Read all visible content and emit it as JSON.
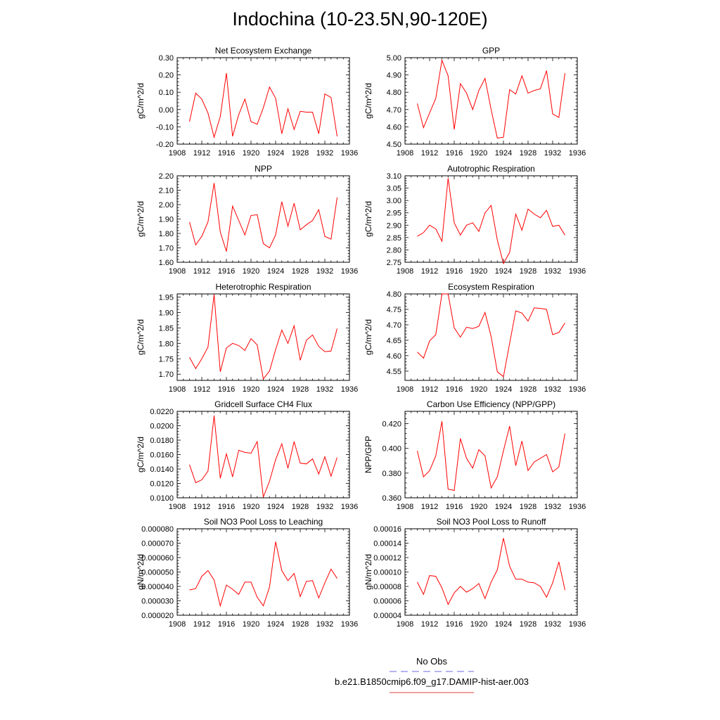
{
  "page": {
    "title": "Indochina (10-23.5N,90-120E)"
  },
  "legend": {
    "items": [
      {
        "label": "No Obs",
        "color": "#6a6ae6",
        "style": "dashed"
      },
      {
        "label": "b.e21.B1850cmip6.f09_g17.DAMIP-hist-aer.003",
        "color": "#e04040",
        "style": "solid"
      }
    ]
  },
  "chart_data": [
    {
      "type": "line",
      "title": "Net Ecosystem Exchange",
      "ylabel": "gC/m^2/d",
      "xlim": [
        1908,
        1936
      ],
      "xticks": [
        1908,
        1912,
        1916,
        1920,
        1924,
        1928,
        1932,
        1936
      ],
      "ylim": [
        -0.2,
        0.3
      ],
      "yticks": [
        -0.2,
        -0.1,
        0.0,
        0.1,
        0.2,
        0.3
      ],
      "ydecimals": 2,
      "series": [
        {
          "color": "#ff0000",
          "x": [
            1910,
            1911,
            1912,
            1913,
            1914,
            1915,
            1916,
            1917,
            1918,
            1919,
            1920,
            1921,
            1922,
            1923,
            1924,
            1925,
            1926,
            1927,
            1928,
            1929,
            1930,
            1931,
            1932,
            1933,
            1934
          ],
          "y": [
            -0.07,
            0.095,
            0.06,
            -0.02,
            -0.16,
            -0.04,
            0.21,
            -0.155,
            -0.03,
            0.06,
            -0.07,
            -0.085,
            0.01,
            0.13,
            0.065,
            -0.14,
            0.005,
            -0.115,
            -0.01,
            -0.015,
            -0.015,
            -0.14,
            0.09,
            0.07,
            -0.155
          ]
        }
      ]
    },
    {
      "type": "line",
      "title": "GPP",
      "ylabel": "gC/m^2/d",
      "xlim": [
        1908,
        1936
      ],
      "xticks": [
        1908,
        1912,
        1916,
        1920,
        1924,
        1928,
        1932,
        1936
      ],
      "ylim": [
        4.5,
        5.0
      ],
      "yticks": [
        4.5,
        4.6,
        4.7,
        4.8,
        4.9,
        5.0
      ],
      "ydecimals": 2,
      "series": [
        {
          "color": "#ff0000",
          "x": [
            1910,
            1911,
            1912,
            1913,
            1914,
            1915,
            1916,
            1917,
            1918,
            1919,
            1920,
            1921,
            1922,
            1923,
            1924,
            1925,
            1926,
            1927,
            1928,
            1929,
            1930,
            1931,
            1932,
            1933,
            1934
          ],
          "y": [
            4.735,
            4.595,
            4.68,
            4.765,
            4.985,
            4.895,
            4.585,
            4.85,
            4.795,
            4.7,
            4.81,
            4.88,
            4.7,
            4.535,
            4.54,
            4.815,
            4.79,
            4.895,
            4.795,
            4.81,
            4.82,
            4.925,
            4.675,
            4.655,
            4.91
          ]
        }
      ]
    },
    {
      "type": "line",
      "title": "NPP",
      "ylabel": "gC/m^2/d",
      "xlim": [
        1908,
        1936
      ],
      "xticks": [
        1908,
        1912,
        1916,
        1920,
        1924,
        1928,
        1932,
        1936
      ],
      "ylim": [
        1.6,
        2.2
      ],
      "yticks": [
        1.6,
        1.7,
        1.8,
        1.9,
        2.0,
        2.1,
        2.2
      ],
      "ydecimals": 2,
      "series": [
        {
          "color": "#ff0000",
          "x": [
            1910,
            1911,
            1912,
            1913,
            1914,
            1915,
            1916,
            1917,
            1918,
            1919,
            1920,
            1921,
            1922,
            1923,
            1924,
            1925,
            1926,
            1927,
            1928,
            1929,
            1930,
            1931,
            1932,
            1933,
            1934
          ],
          "y": [
            1.88,
            1.72,
            1.78,
            1.88,
            2.15,
            1.81,
            1.675,
            1.99,
            1.89,
            1.79,
            1.925,
            1.93,
            1.73,
            1.7,
            1.79,
            2.02,
            1.85,
            2.01,
            1.825,
            1.86,
            1.89,
            1.965,
            1.78,
            1.76,
            2.05
          ]
        }
      ]
    },
    {
      "type": "line",
      "title": "Autotrophic Respiration",
      "ylabel": "gC/m^2/d",
      "xlim": [
        1908,
        1936
      ],
      "xticks": [
        1908,
        1912,
        1916,
        1920,
        1924,
        1928,
        1932,
        1936
      ],
      "ylim": [
        2.75,
        3.1
      ],
      "yticks": [
        2.75,
        2.8,
        2.85,
        2.9,
        2.95,
        3.0,
        3.05,
        3.1
      ],
      "ydecimals": 2,
      "series": [
        {
          "color": "#ff0000",
          "x": [
            1910,
            1911,
            1912,
            1913,
            1914,
            1915,
            1916,
            1917,
            1918,
            1919,
            1920,
            1921,
            1922,
            1923,
            1924,
            1925,
            1926,
            1927,
            1928,
            1929,
            1930,
            1931,
            1932,
            1933,
            1934
          ],
          "y": [
            2.855,
            2.87,
            2.9,
            2.885,
            2.835,
            3.09,
            2.91,
            2.86,
            2.9,
            2.91,
            2.875,
            2.95,
            2.98,
            2.84,
            2.745,
            2.79,
            2.945,
            2.88,
            2.965,
            2.945,
            2.93,
            2.96,
            2.895,
            2.9,
            2.86
          ]
        }
      ]
    },
    {
      "type": "line",
      "title": "Heterotrophic Respiration",
      "ylabel": "gC/m^2/d",
      "xlim": [
        1908,
        1936
      ],
      "xticks": [
        1908,
        1912,
        1916,
        1920,
        1924,
        1928,
        1932,
        1936
      ],
      "ylim": [
        1.68,
        1.96
      ],
      "yticks": [
        1.7,
        1.75,
        1.8,
        1.85,
        1.9,
        1.95
      ],
      "ydecimals": 2,
      "series": [
        {
          "color": "#ff0000",
          "x": [
            1910,
            1911,
            1912,
            1913,
            1914,
            1915,
            1916,
            1917,
            1918,
            1919,
            1920,
            1921,
            1922,
            1923,
            1924,
            1925,
            1926,
            1927,
            1928,
            1929,
            1930,
            1931,
            1932,
            1933,
            1934
          ],
          "y": [
            1.755,
            1.718,
            1.75,
            1.788,
            1.958,
            1.708,
            1.785,
            1.8,
            1.793,
            1.777,
            1.815,
            1.795,
            1.685,
            1.71,
            1.78,
            1.843,
            1.8,
            1.857,
            1.745,
            1.81,
            1.827,
            1.79,
            1.773,
            1.775,
            1.848
          ]
        }
      ]
    },
    {
      "type": "line",
      "title": "Ecosystem Respiration",
      "ylabel": "gC/m^2/d",
      "xlim": [
        1908,
        1936
      ],
      "xticks": [
        1908,
        1912,
        1916,
        1920,
        1924,
        1928,
        1932,
        1936
      ],
      "ylim": [
        4.52,
        4.8
      ],
      "yticks": [
        4.55,
        4.6,
        4.65,
        4.7,
        4.75,
        4.8
      ],
      "ydecimals": 2,
      "series": [
        {
          "color": "#ff0000",
          "x": [
            1910,
            1911,
            1912,
            1913,
            1914,
            1915,
            1916,
            1917,
            1918,
            1919,
            1920,
            1921,
            1922,
            1923,
            1924,
            1925,
            1926,
            1927,
            1928,
            1929,
            1930,
            1931,
            1932,
            1933,
            1934
          ],
          "y": [
            4.612,
            4.592,
            4.648,
            4.668,
            4.8,
            4.8,
            4.69,
            4.66,
            4.692,
            4.688,
            4.695,
            4.74,
            4.662,
            4.548,
            4.532,
            4.64,
            4.745,
            4.738,
            4.712,
            4.755,
            4.753,
            4.75,
            4.668,
            4.675,
            4.706
          ]
        }
      ]
    },
    {
      "type": "line",
      "title": "Gridcell Surface CH4 Flux",
      "ylabel": "gC/m^2/d",
      "xlim": [
        1908,
        1936
      ],
      "xticks": [
        1908,
        1912,
        1916,
        1920,
        1924,
        1928,
        1932,
        1936
      ],
      "ylim": [
        0.01,
        0.022
      ],
      "yticks": [
        0.01,
        0.012,
        0.014,
        0.016,
        0.018,
        0.02,
        0.022
      ],
      "ydecimals": 4,
      "series": [
        {
          "color": "#ff0000",
          "x": [
            1910,
            1911,
            1912,
            1913,
            1914,
            1915,
            1916,
            1917,
            1918,
            1919,
            1920,
            1921,
            1922,
            1923,
            1924,
            1925,
            1926,
            1927,
            1928,
            1929,
            1930,
            1931,
            1932,
            1933,
            1934
          ],
          "y": [
            0.0146,
            0.0121,
            0.0125,
            0.0137,
            0.0214,
            0.0127,
            0.0161,
            0.0129,
            0.0166,
            0.0163,
            0.0162,
            0.0178,
            0.0101,
            0.0123,
            0.0153,
            0.0175,
            0.0141,
            0.0178,
            0.0148,
            0.0147,
            0.0154,
            0.0133,
            0.0157,
            0.013,
            0.0156
          ]
        }
      ]
    },
    {
      "type": "line",
      "title": "Carbon Use Efficiency (NPP/GPP)",
      "ylabel": "NPP/GPP",
      "xlim": [
        1908,
        1936
      ],
      "xticks": [
        1908,
        1912,
        1916,
        1920,
        1924,
        1928,
        1932,
        1936
      ],
      "ylim": [
        0.36,
        0.43
      ],
      "yticks": [
        0.36,
        0.38,
        0.4,
        0.42
      ],
      "ydecimals": 3,
      "series": [
        {
          "color": "#ff0000",
          "x": [
            1910,
            1911,
            1912,
            1913,
            1914,
            1915,
            1916,
            1917,
            1918,
            1919,
            1920,
            1921,
            1922,
            1923,
            1924,
            1925,
            1926,
            1927,
            1928,
            1929,
            1930,
            1931,
            1932,
            1933,
            1934
          ],
          "y": [
            0.398,
            0.377,
            0.382,
            0.394,
            0.422,
            0.367,
            0.366,
            0.408,
            0.392,
            0.384,
            0.399,
            0.394,
            0.368,
            0.377,
            0.398,
            0.418,
            0.386,
            0.406,
            0.382,
            0.389,
            0.392,
            0.395,
            0.381,
            0.385,
            0.412
          ]
        }
      ]
    },
    {
      "type": "line",
      "title": "Soil NO3 Pool Loss to Leaching",
      "ylabel": "gN/m^2/d",
      "xlim": [
        1908,
        1936
      ],
      "xticks": [
        1908,
        1912,
        1916,
        1920,
        1924,
        1928,
        1932,
        1936
      ],
      "ylim": [
        2e-05,
        8e-05
      ],
      "yticks": [
        2e-05,
        3e-05,
        4e-05,
        5e-05,
        6e-05,
        7e-05,
        8e-05
      ],
      "ydecimals": 6,
      "series": [
        {
          "color": "#ff0000",
          "x": [
            1910,
            1911,
            1912,
            1913,
            1914,
            1915,
            1916,
            1917,
            1918,
            1919,
            1920,
            1921,
            1922,
            1923,
            1924,
            1925,
            1926,
            1927,
            1928,
            1929,
            1930,
            1931,
            1932,
            1933,
            1934
          ],
          "y": [
            3.75e-05,
            3.85e-05,
            4.7e-05,
            5.1e-05,
            4.45e-05,
            2.65e-05,
            4.1e-05,
            3.8e-05,
            3.45e-05,
            4.3e-05,
            4.3e-05,
            3.25e-05,
            2.65e-05,
            3.95e-05,
            7.1e-05,
            5.1e-05,
            4.4e-05,
            4.9e-05,
            3.3e-05,
            4.35e-05,
            4.4e-05,
            3.2e-05,
            4.25e-05,
            5.2e-05,
            4.55e-05
          ]
        }
      ]
    },
    {
      "type": "line",
      "title": "Soil NO3 Pool Loss to Runoff",
      "ylabel": "gN/m^2/d",
      "xlim": [
        1908,
        1936
      ],
      "xticks": [
        1908,
        1912,
        1916,
        1920,
        1924,
        1928,
        1932,
        1936
      ],
      "ylim": [
        4e-05,
        0.00016
      ],
      "yticks": [
        4e-05,
        6e-05,
        8e-05,
        0.0001,
        0.00012,
        0.00014,
        0.00016
      ],
      "ydecimals": 5,
      "series": [
        {
          "color": "#ff0000",
          "x": [
            1910,
            1911,
            1912,
            1913,
            1914,
            1915,
            1916,
            1917,
            1918,
            1919,
            1920,
            1921,
            1922,
            1923,
            1924,
            1925,
            1926,
            1927,
            1928,
            1929,
            1930,
            1931,
            1932,
            1933,
            1934
          ],
          "y": [
            8.6e-05,
            6.9e-05,
            9.5e-05,
            9.4e-05,
            7.8e-05,
            5.5e-05,
            7.1e-05,
            8e-05,
            7.2e-05,
            7.7e-05,
            8.4e-05,
            6.3e-05,
            8.6e-05,
            0.000103,
            0.000147,
            0.000108,
            9e-05,
            9e-05,
            8.6e-05,
            8.5e-05,
            8e-05,
            6.5e-05,
            8.5e-05,
            0.000114,
            7.5e-05
          ]
        }
      ]
    }
  ]
}
